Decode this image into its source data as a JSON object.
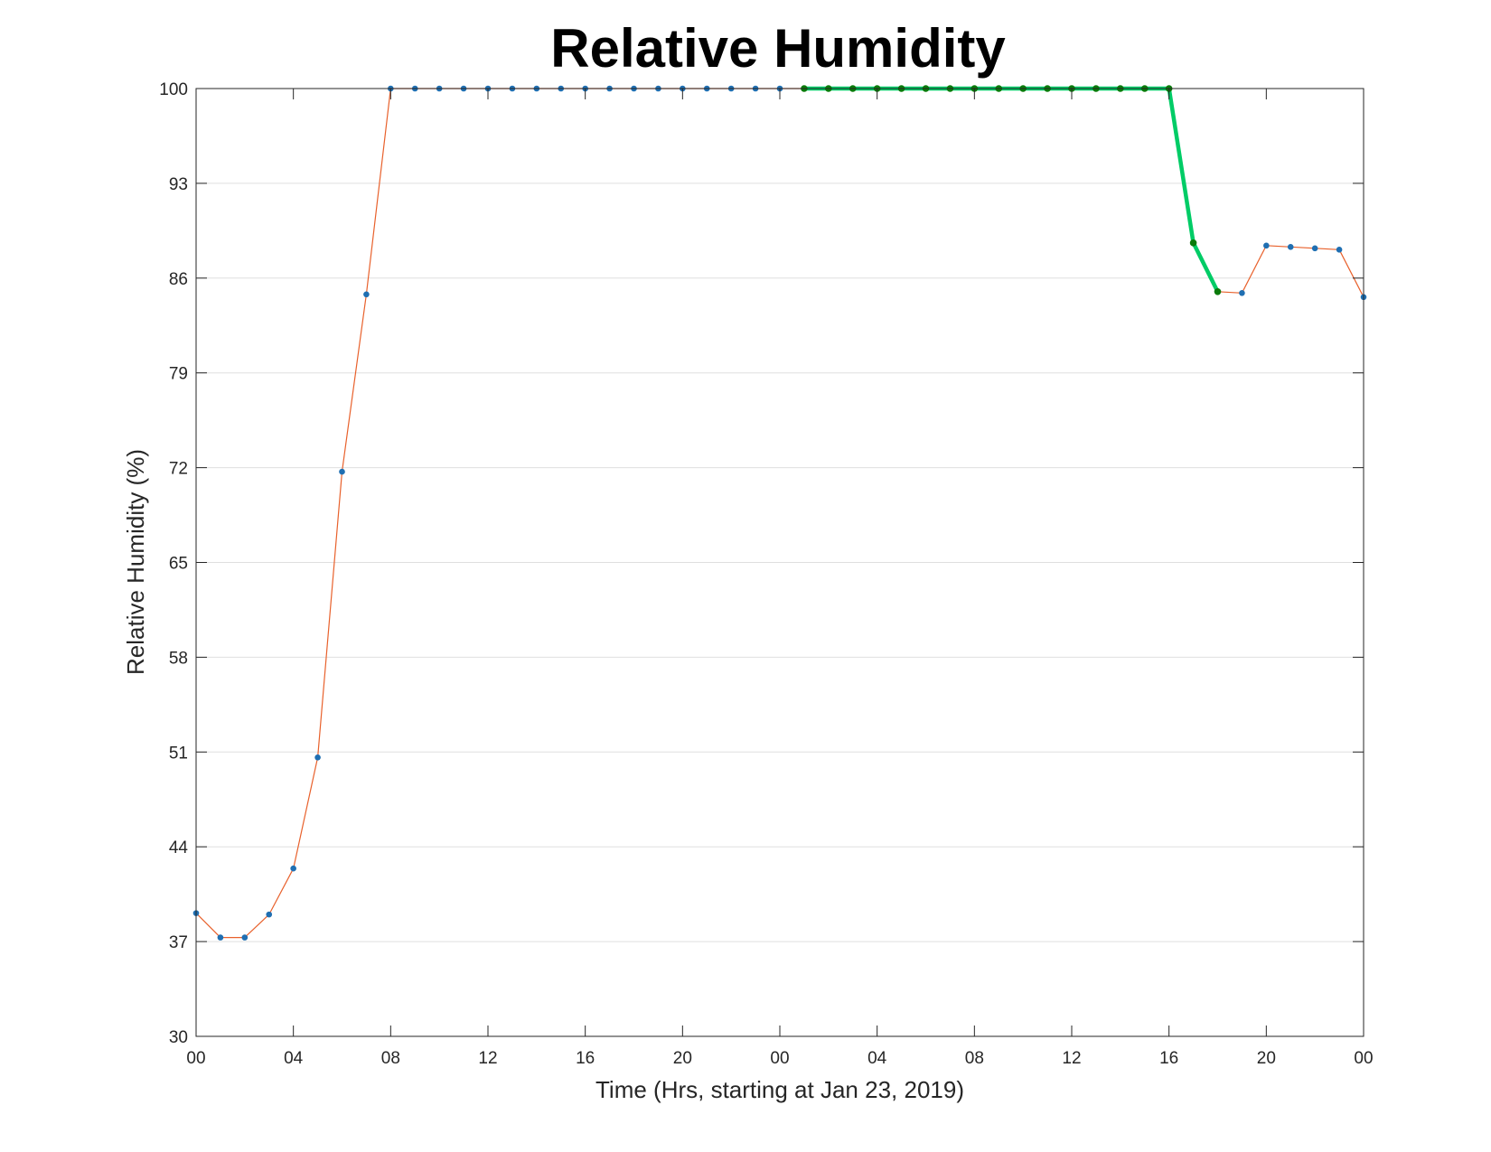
{
  "chart_data": {
    "type": "line",
    "title": "Relative Humidity",
    "xlabel": "Time (Hrs, starting at Jan 23, 2019)",
    "ylabel": "Relative Humidity (%)",
    "x_unit": "hours",
    "xlim": [
      0,
      48
    ],
    "ylim": [
      30,
      100
    ],
    "x_ticks": [
      0,
      4,
      8,
      12,
      16,
      20,
      24,
      28,
      32,
      36,
      40,
      44,
      48
    ],
    "x_tick_labels": [
      "00",
      "04",
      "08",
      "12",
      "16",
      "20",
      "00",
      "04",
      "08",
      "12",
      "16",
      "20",
      "00"
    ],
    "y_ticks": [
      30,
      37,
      44,
      51,
      58,
      65,
      72,
      79,
      86,
      93,
      100
    ],
    "y_tick_labels": [
      "30",
      "37",
      "44",
      "51",
      "58",
      "65",
      "72",
      "79",
      "86",
      "93",
      "100"
    ],
    "grid": "horizontal",
    "series": [
      {
        "color": "#e8612c",
        "marker_color": "#1f6fb2",
        "x": [
          0,
          1,
          2,
          3,
          4,
          5,
          6,
          7,
          8,
          9,
          10,
          11,
          12,
          13,
          14,
          15,
          16,
          17,
          18,
          19,
          20,
          21,
          22,
          23,
          24,
          25,
          26,
          27,
          28,
          29,
          30,
          31,
          32,
          33,
          34,
          35,
          36,
          37,
          38,
          39,
          40,
          41,
          42,
          43,
          44,
          45,
          46,
          47,
          48
        ],
        "y": [
          39.1,
          37.3,
          37.3,
          39.0,
          42.4,
          50.6,
          71.7,
          84.8,
          100,
          100,
          100,
          100,
          100,
          100,
          100,
          100,
          100,
          100,
          100,
          100,
          100,
          100,
          100,
          100,
          100,
          100,
          100,
          100,
          100,
          100,
          100,
          100,
          100,
          100,
          100,
          100,
          100,
          100,
          100,
          100,
          100,
          88.6,
          85.0,
          84.9,
          88.4,
          88.3,
          88.2,
          88.1,
          84.6
        ]
      },
      {
        "color": "#00cc66",
        "marker_color": "#0a7a0a",
        "x": [
          25,
          26,
          27,
          28,
          29,
          30,
          31,
          32,
          33,
          34,
          35,
          36,
          37,
          38,
          39,
          40,
          41,
          42
        ],
        "y": [
          100,
          100,
          100,
          100,
          100,
          100,
          100,
          100,
          100,
          100,
          100,
          100,
          100,
          100,
          100,
          100,
          88.6,
          85.0
        ]
      }
    ]
  }
}
